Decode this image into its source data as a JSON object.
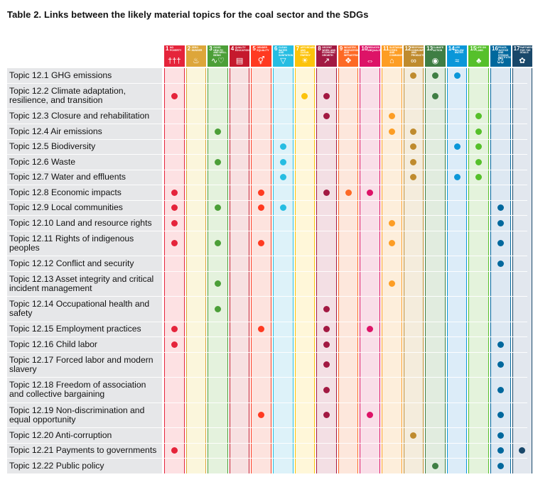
{
  "title": "Table 2. Links between the likely material topics for the coal sector and the SDGs",
  "sdgs": [
    {
      "num": "1",
      "label": "NO POVERTY",
      "color": "#e5243b",
      "tint": "#fde1e3",
      "icon": "family-icon",
      "glyph": "†††"
    },
    {
      "num": "2",
      "label": "ZERO HUNGER",
      "color": "#dda63a",
      "tint": "#fbf6dc",
      "icon": "bowl-icon",
      "glyph": "♨"
    },
    {
      "num": "3",
      "label": "GOOD HEALTH AND WELL-BEING",
      "color": "#4c9f38",
      "tint": "#e4f2dd",
      "icon": "heartbeat-icon",
      "glyph": "∿♡"
    },
    {
      "num": "4",
      "label": "QUALITY EDUCATION",
      "color": "#c5192d",
      "tint": "#f7e0e1",
      "icon": "book-icon",
      "glyph": "▤"
    },
    {
      "num": "5",
      "label": "GENDER EQUALITY",
      "color": "#ff3a21",
      "tint": "#fde3de",
      "icon": "gender-icon",
      "glyph": "⚥"
    },
    {
      "num": "6",
      "label": "CLEAN WATER AND SANITATION",
      "color": "#26bde2",
      "tint": "#ddf2f9",
      "icon": "water-glass-icon",
      "glyph": "▽"
    },
    {
      "num": "7",
      "label": "AFFORDABLE AND CLEAN ENERGY",
      "color": "#fcc30b",
      "tint": "#fff7d9",
      "icon": "sun-icon",
      "glyph": "☀"
    },
    {
      "num": "8",
      "label": "DECENT WORK AND ECONOMIC GROWTH",
      "color": "#a21942",
      "tint": "#f3dfe4",
      "icon": "growth-chart-icon",
      "glyph": "↗"
    },
    {
      "num": "9",
      "label": "INDUSTRY, INNOVATION AND INFRASTRUCTURE",
      "color": "#fd6925",
      "tint": "#fde7dc",
      "icon": "cubes-icon",
      "glyph": "❖"
    },
    {
      "num": "10",
      "label": "REDUCED INEQUALITIES",
      "color": "#dd1367",
      "tint": "#f9dfe8",
      "icon": "equal-icon",
      "glyph": "⇔"
    },
    {
      "num": "11",
      "label": "SUSTAINABLE CITIES AND COMMUNITIES",
      "color": "#fd9d24",
      "tint": "#fdeedb",
      "icon": "city-icon",
      "glyph": "⌂"
    },
    {
      "num": "12",
      "label": "RESPONSIBLE CONSUMPTION AND PRODUCTION",
      "color": "#bf8b2e",
      "tint": "#f4ecdc",
      "icon": "infinity-icon",
      "glyph": "∞"
    },
    {
      "num": "13",
      "label": "CLIMATE ACTION",
      "color": "#3f7e44",
      "tint": "#e1ecdf",
      "icon": "eye-globe-icon",
      "glyph": "◉"
    },
    {
      "num": "14",
      "label": "LIFE BELOW WATER",
      "color": "#0a97d9",
      "tint": "#dcecf8",
      "icon": "fish-icon",
      "glyph": "≈"
    },
    {
      "num": "15",
      "label": "LIFE ON LAND",
      "color": "#56c02b",
      "tint": "#e4f3dc",
      "icon": "tree-icon",
      "glyph": "♣"
    },
    {
      "num": "16",
      "label": "PEACE, JUSTICE AND STRONG INSTITUTIONS",
      "color": "#00689d",
      "tint": "#dde8f2",
      "icon": "dove-icon",
      "glyph": "⚖"
    },
    {
      "num": "17",
      "label": "PARTNERSHIPS FOR THE GOALS",
      "color": "#19486a",
      "tint": "#e2e7ee",
      "icon": "flower-icon",
      "glyph": "✿"
    }
  ],
  "rows": [
    {
      "topic": "Topic 12.1 GHG emissions",
      "sdgs": [
        12,
        13,
        14
      ]
    },
    {
      "topic": "Topic 12.2 Climate adaptation, resilience, and transition",
      "lines": [
        "Topic 12.2 Climate adaptation,",
        "resilience, and transition"
      ],
      "sdgs": [
        1,
        7,
        8,
        13
      ]
    },
    {
      "topic": "Topic 12.3 Closure and rehabilitation",
      "sdgs": [
        8,
        11,
        15
      ]
    },
    {
      "topic": "Topic 12.4 Air emissions",
      "sdgs": [
        3,
        11,
        12,
        15
      ]
    },
    {
      "topic": "Topic 12.5 Biodiversity",
      "sdgs": [
        6,
        12,
        14,
        15
      ]
    },
    {
      "topic": "Topic 12.6 Waste",
      "sdgs": [
        3,
        6,
        12,
        15
      ]
    },
    {
      "topic": "Topic 12.7 Water and effluents",
      "sdgs": [
        6,
        12,
        14,
        15
      ]
    },
    {
      "topic": "Topic 12.8 Economic impacts",
      "sdgs": [
        1,
        5,
        8,
        9,
        10
      ]
    },
    {
      "topic": "Topic 12.9 Local communities",
      "sdgs": [
        1,
        3,
        5,
        6,
        16
      ]
    },
    {
      "topic": "Topic 12.10 Land and resource rights",
      "sdgs": [
        1,
        11,
        16
      ]
    },
    {
      "topic": "Topic 12.11 Rights of indigenous peoples",
      "lines": [
        "Topic 12.11 Rights of indigenous",
        "peoples"
      ],
      "sdgs": [
        1,
        3,
        5,
        11,
        16
      ]
    },
    {
      "topic": "Topic 12.12 Conflict and security",
      "sdgs": [
        16
      ]
    },
    {
      "topic": "Topic 12.13 Asset integrity and critical incident management",
      "lines": [
        "Topic 12.13 Asset integrity and critical",
        "incident management"
      ],
      "sdgs": [
        3,
        11
      ]
    },
    {
      "topic": "Topic 12.14 Occupational health and safety",
      "lines": [
        "Topic 12.14 Occupational health and",
        "safety"
      ],
      "sdgs": [
        3,
        8
      ]
    },
    {
      "topic": "Topic 12.15 Employment practices",
      "sdgs": [
        1,
        5,
        8,
        10
      ]
    },
    {
      "topic": "Topic 12.16 Child labor",
      "sdgs": [
        1,
        8,
        16
      ]
    },
    {
      "topic": "Topic 12.17 Forced labor and modern slavery",
      "lines": [
        "Topic 12.17 Forced labor and modern",
        "slavery"
      ],
      "sdgs": [
        8,
        16
      ]
    },
    {
      "topic": "Topic 12.18 Freedom of association and collective bargaining",
      "lines": [
        "Topic 12.18 Freedom of association",
        "and collective bargaining"
      ],
      "sdgs": [
        8,
        16
      ]
    },
    {
      "topic": "Topic 12.19 Non-discrimination and equal opportunity",
      "lines": [
        "Topic 12.19 Non-discrimination and",
        "equal opportunity"
      ],
      "sdgs": [
        5,
        8,
        10,
        16
      ]
    },
    {
      "topic": "Topic 12.20 Anti-corruption",
      "sdgs": [
        12,
        16
      ]
    },
    {
      "topic": "Topic 12.21 Payments to governments",
      "sdgs": [
        1,
        16,
        17
      ]
    },
    {
      "topic": "Topic 12.22 Public policy",
      "sdgs": [
        13,
        16
      ]
    }
  ]
}
